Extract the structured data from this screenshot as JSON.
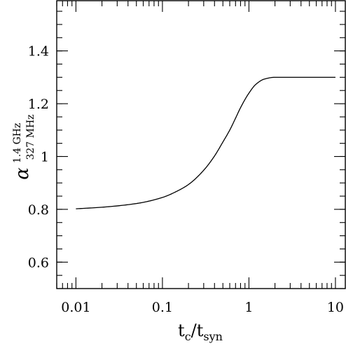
{
  "chart_data": {
    "type": "line",
    "xscale": "log",
    "xlim": [
      0.006,
      13
    ],
    "ylim": [
      0.5,
      1.59
    ],
    "xticks": [
      {
        "value": 0.01,
        "label": "0.01"
      },
      {
        "value": 0.1,
        "label": "0.1"
      },
      {
        "value": 1,
        "label": "1"
      },
      {
        "value": 10,
        "label": "10"
      }
    ],
    "yticks": [
      {
        "value": 0.6,
        "label": "0.6"
      },
      {
        "value": 0.8,
        "label": "0.8"
      },
      {
        "value": 1.0,
        "label": "1"
      },
      {
        "value": 1.2,
        "label": "1.2"
      },
      {
        "value": 1.4,
        "label": "1.4"
      }
    ],
    "xlabel": {
      "main": "t",
      "sub1": "c",
      "slash": "/",
      "main2": "t",
      "sub2": "syn"
    },
    "ylabel": {
      "main": "α",
      "sup": "1.4 GHz",
      "sub": "327 MHz"
    },
    "series": [
      {
        "x": [
          0.01,
          0.02,
          0.05,
          0.1,
          0.15,
          0.2,
          0.3,
          0.4,
          0.5,
          0.6,
          0.7,
          0.8,
          1.0,
          1.2,
          1.5,
          2.0,
          3.0,
          5.0,
          10.0
        ],
        "y": [
          0.802,
          0.808,
          0.822,
          0.845,
          0.87,
          0.894,
          0.948,
          1.002,
          1.055,
          1.1,
          1.145,
          1.185,
          1.24,
          1.273,
          1.293,
          1.3,
          1.3,
          1.3,
          1.3
        ]
      }
    ],
    "grid": false,
    "legend": "none"
  }
}
